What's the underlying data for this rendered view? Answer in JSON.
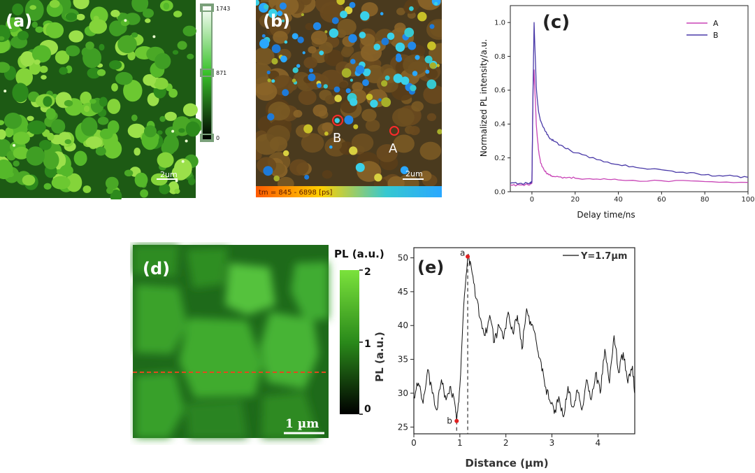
{
  "chart_data": [
    {
      "panel": "(a)",
      "type": "heatmap",
      "title": "",
      "colorbar": {
        "ticks": [
          "1743",
          "871",
          "0"
        ],
        "range": [
          0,
          1743
        ],
        "colors": [
          "#ffffff",
          "#39c22a",
          "#000000"
        ]
      },
      "scale_bar": "2um"
    },
    {
      "panel": "(b)",
      "type": "heatmap",
      "title": "",
      "markers": [
        {
          "label": "B"
        },
        {
          "label": "A"
        }
      ],
      "scale_bar": "2um",
      "colorbar_label": "tm = 845 - 6898 [ps]",
      "colors": [
        "#ff5a00",
        "#ffd000",
        "#36c8d0",
        "#2aa8ff"
      ]
    },
    {
      "panel": "(c)",
      "type": "line",
      "title": "",
      "xlabel": "Delay time/ns",
      "ylabel": "Normalized PL intensity/a.u.",
      "xlim": [
        -10,
        100
      ],
      "ylim": [
        0,
        1.1
      ],
      "xticks": [
        0,
        20,
        40,
        60,
        80,
        100
      ],
      "yticks": [
        0.0,
        0.2,
        0.4,
        0.6,
        0.8,
        1.0
      ],
      "legend_position": "top-right",
      "series": [
        {
          "name": "A",
          "color": "#c844b6",
          "x": [
            -10,
            -5,
            -1,
            0,
            0.5,
            1,
            2,
            3,
            4,
            6,
            8,
            10,
            15,
            20,
            30,
            40,
            60,
            80,
            100
          ],
          "y": [
            0.04,
            0.04,
            0.04,
            0.05,
            0.6,
            0.72,
            0.4,
            0.25,
            0.17,
            0.12,
            0.1,
            0.09,
            0.085,
            0.08,
            0.075,
            0.07,
            0.065,
            0.06,
            0.055
          ]
        },
        {
          "name": "B",
          "color": "#4a3aa8",
          "x": [
            -10,
            -5,
            -1,
            0,
            0.5,
            1,
            2,
            3,
            4,
            6,
            8,
            10,
            15,
            20,
            30,
            40,
            50,
            60,
            70,
            80,
            90,
            100
          ],
          "y": [
            0.05,
            0.05,
            0.05,
            0.06,
            0.6,
            1.0,
            0.62,
            0.48,
            0.42,
            0.36,
            0.32,
            0.3,
            0.26,
            0.23,
            0.19,
            0.16,
            0.14,
            0.13,
            0.115,
            0.1,
            0.095,
            0.085
          ]
        }
      ]
    },
    {
      "panel": "(d)",
      "type": "heatmap",
      "title": "",
      "colorbar": {
        "label": "PL (a.u.)",
        "ticks": [
          "2",
          "1",
          "0"
        ],
        "range": [
          0,
          2
        ],
        "colors": [
          "#7be23c",
          "#2a8a1a",
          "#000000"
        ]
      },
      "scale_bar": "1 µm"
    },
    {
      "panel": "(e)",
      "type": "line",
      "title": "",
      "xlabel": "Distance (µm)",
      "ylabel": "PL (a.u.)",
      "xlim": [
        0,
        4.8
      ],
      "ylim": [
        24,
        51.5
      ],
      "xticks": [
        0,
        1,
        2,
        3,
        4
      ],
      "yticks": [
        25,
        30,
        35,
        40,
        45,
        50
      ],
      "legend_position": "top-right",
      "annotations": [
        {
          "label": "a",
          "x": 1.17,
          "y": 50.2
        },
        {
          "label": "b",
          "x": 0.93,
          "y": 25.9
        }
      ],
      "series": [
        {
          "name": "Y=1.7µm",
          "color": "#111111",
          "x": [
            0,
            0.1,
            0.2,
            0.3,
            0.4,
            0.5,
            0.6,
            0.7,
            0.8,
            0.9,
            0.93,
            1.0,
            1.1,
            1.17,
            1.25,
            1.35,
            1.45,
            1.55,
            1.65,
            1.75,
            1.85,
            1.95,
            2.05,
            2.15,
            2.25,
            2.35,
            2.45,
            2.55,
            2.65,
            2.75,
            2.85,
            2.95,
            3.05,
            3.15,
            3.25,
            3.35,
            3.45,
            3.55,
            3.65,
            3.75,
            3.85,
            3.95,
            4.05,
            4.15,
            4.25,
            4.35,
            4.45,
            4.55,
            4.65,
            4.75,
            4.8
          ],
          "y": [
            29.5,
            31.5,
            28.5,
            33.5,
            30.0,
            27.5,
            32.0,
            29.0,
            31.0,
            28.0,
            25.9,
            31.0,
            44.5,
            50.2,
            48.5,
            44.0,
            41.0,
            38.5,
            41.5,
            37.5,
            40.0,
            38.0,
            42.0,
            39.0,
            41.5,
            36.5,
            42.5,
            40.0,
            38.0,
            35.0,
            31.0,
            29.0,
            27.0,
            29.5,
            26.5,
            31.0,
            28.0,
            30.5,
            27.5,
            32.0,
            29.0,
            33.0,
            30.0,
            36.5,
            31.5,
            38.5,
            33.0,
            36.0,
            31.5,
            34.0,
            30.0
          ]
        }
      ]
    }
  ]
}
